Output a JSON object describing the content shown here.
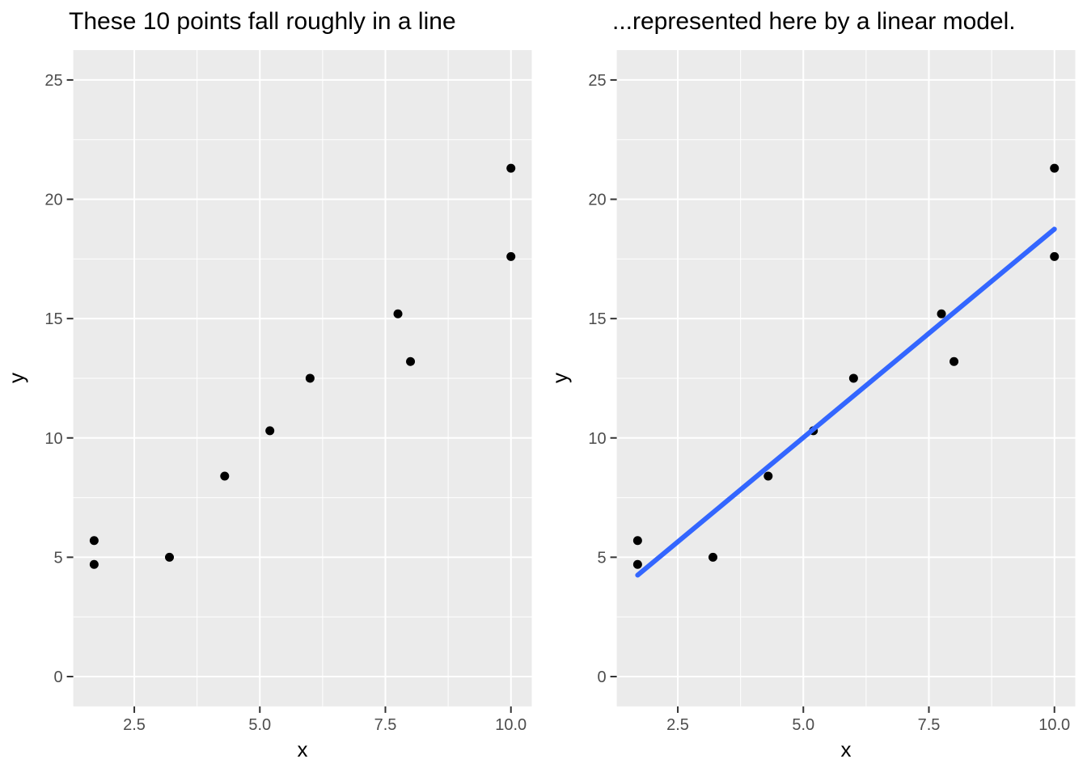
{
  "page": {
    "background": "#FFFFFF",
    "layout": "two scatter plots side by side"
  },
  "chart_data": [
    {
      "type": "scatter",
      "title": "These 10 points fall roughly in a line",
      "xlabel": "x",
      "ylabel": "y",
      "points": [
        [
          1.7,
          5.7
        ],
        [
          1.7,
          4.7
        ],
        [
          3.2,
          5.0
        ],
        [
          4.3,
          8.4
        ],
        [
          5.2,
          10.3
        ],
        [
          6.0,
          12.5
        ],
        [
          7.75,
          15.2
        ],
        [
          8.0,
          13.2
        ],
        [
          10.0,
          21.3
        ],
        [
          10.0,
          17.6
        ]
      ],
      "x_ticks": {
        "values": [
          2.5,
          5.0,
          7.5,
          10.0
        ],
        "labels": [
          "2.5",
          "5.0",
          "7.5",
          "10.0"
        ]
      },
      "y_ticks": {
        "values": [
          0,
          5,
          10,
          15,
          20,
          25
        ],
        "labels": [
          "0",
          "5",
          "10",
          "15",
          "20",
          "25"
        ]
      },
      "x_minor_gridlines": [
        3.75,
        6.25,
        8.75
      ],
      "y_minor_gridlines": [
        2.5,
        7.5,
        12.5,
        17.5,
        22.5
      ],
      "xlim": [
        1.285,
        10.415
      ],
      "ylim": [
        -1.25,
        26.25
      ],
      "grid": "major and minor, white on grey panel",
      "legend": "none",
      "trend_line": null,
      "colors": {
        "point": "#000000",
        "panel_background": "#EBEBEB",
        "gridline": "#FFFFFF",
        "tick_mark": "#333333",
        "tick_label": "#4D4D4D",
        "title": "#000000"
      }
    },
    {
      "type": "scatter",
      "title": "...represented here by a linear model.",
      "xlabel": "x",
      "ylabel": "y",
      "points": [
        [
          1.7,
          5.7
        ],
        [
          1.7,
          4.7
        ],
        [
          3.2,
          5.0
        ],
        [
          4.3,
          8.4
        ],
        [
          5.2,
          10.3
        ],
        [
          6.0,
          12.5
        ],
        [
          7.75,
          15.2
        ],
        [
          8.0,
          13.2
        ],
        [
          10.0,
          21.3
        ],
        [
          10.0,
          17.6
        ]
      ],
      "x_ticks": {
        "values": [
          2.5,
          5.0,
          7.5,
          10.0
        ],
        "labels": [
          "2.5",
          "5.0",
          "7.5",
          "10.0"
        ]
      },
      "y_ticks": {
        "values": [
          0,
          5,
          10,
          15,
          20,
          25
        ],
        "labels": [
          "0",
          "5",
          "10",
          "15",
          "20",
          "25"
        ]
      },
      "x_minor_gridlines": [
        3.75,
        6.25,
        8.75
      ],
      "y_minor_gridlines": [
        2.5,
        7.5,
        12.5,
        17.5,
        22.5
      ],
      "xlim": [
        1.285,
        10.415
      ],
      "ylim": [
        -1.25,
        26.25
      ],
      "grid": "major and minor, white on grey panel",
      "legend": "none",
      "trend_line": {
        "model": "linear",
        "x_start": 1.7,
        "y_start": 4.25,
        "x_end": 10.0,
        "y_end": 18.75,
        "color": "#3366FF",
        "stroke_width": 6
      },
      "colors": {
        "point": "#000000",
        "panel_background": "#EBEBEB",
        "gridline": "#FFFFFF",
        "tick_mark": "#333333",
        "tick_label": "#4D4D4D",
        "title": "#000000"
      }
    }
  ]
}
